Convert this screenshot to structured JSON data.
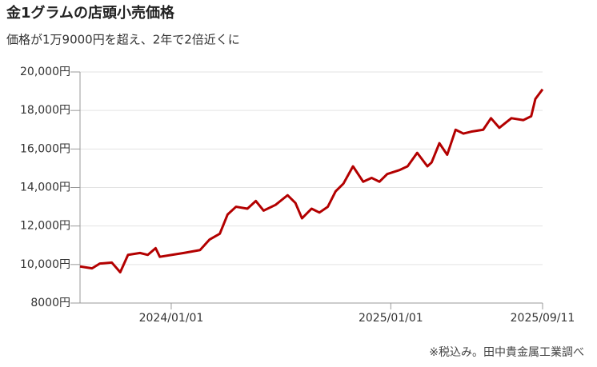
{
  "chart_data": {
    "type": "line",
    "title": "金1グラムの店頭小売価格",
    "subtitle": "価格が1万9000円を超え、2年で2倍近くに",
    "note": "※税込み。田中貴金属工業調べ",
    "x": [
      "2023/08/02",
      "2023/08/22",
      "2023/09/04",
      "2023/09/24",
      "2023/10/08",
      "2023/10/21",
      "2023/11/10",
      "2023/11/23",
      "2023/12/06",
      "2023/12/13",
      "2024/01/02",
      "2024/01/22",
      "2024/02/18",
      "2024/03/05",
      "2024/03/22",
      "2024/04/04",
      "2024/04/18",
      "2024/05/07",
      "2024/05/21",
      "2024/06/03",
      "2024/06/23",
      "2024/07/13",
      "2024/07/26",
      "2024/08/06",
      "2024/08/22",
      "2024/09/04",
      "2024/09/18",
      "2024/10/01",
      "2024/10/14",
      "2024/10/30",
      "2024/11/16",
      "2024/11/30",
      "2024/12/13",
      "2024/12/26",
      "2025/01/15",
      "2025/01/29",
      "2025/02/14",
      "2025/03/03",
      "2025/03/10",
      "2025/03/23",
      "2025/04/05",
      "2025/04/19",
      "2025/05/02",
      "2025/05/15",
      "2025/06/04",
      "2025/06/17",
      "2025/07/01",
      "2025/07/21",
      "2025/08/10",
      "2025/08/23",
      "2025/08/30",
      "2025/09/11"
    ],
    "series": [
      {
        "name": "金1グラムの店頭小売価格",
        "color": "#b30000",
        "values": [
          9900,
          9800,
          10050,
          10100,
          9600,
          10500,
          10600,
          10500,
          10850,
          10400,
          10500,
          10600,
          10750,
          11300,
          11600,
          12600,
          13000,
          12900,
          13300,
          12800,
          13100,
          13600,
          13200,
          12400,
          12900,
          12700,
          13000,
          13800,
          14200,
          15100,
          14300,
          14500,
          14300,
          14700,
          14900,
          15100,
          15800,
          15100,
          15300,
          16300,
          15700,
          17000,
          16800,
          16900,
          17000,
          17600,
          17100,
          17600,
          17500,
          17700,
          18600,
          19100
        ]
      }
    ],
    "xlim": [
      "2023/08/02",
      "2025/09/11"
    ],
    "xticks": [
      "2024/01/01",
      "2025/01/01",
      "2025/09/11"
    ],
    "ylim": [
      8000,
      20000
    ],
    "yticks": [
      {
        "value": 8000,
        "label": "8000円"
      },
      {
        "value": 10000,
        "label": "10,000円"
      },
      {
        "value": 12000,
        "label": "12,000円"
      },
      {
        "value": 14000,
        "label": "14,000円"
      },
      {
        "value": 16000,
        "label": "16,000円"
      },
      {
        "value": 18000,
        "label": "18,000円"
      },
      {
        "value": 20000,
        "label": "20,000円"
      }
    ],
    "grid": true
  }
}
